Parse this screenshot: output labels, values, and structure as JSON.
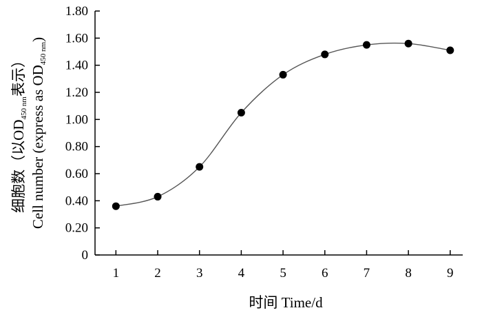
{
  "chart_data": {
    "type": "line",
    "x": [
      1,
      2,
      3,
      4,
      5,
      6,
      7,
      8,
      9
    ],
    "values": [
      0.36,
      0.43,
      0.65,
      1.05,
      1.33,
      1.48,
      1.55,
      1.56,
      1.51
    ],
    "xlabel": "时间  Time/d",
    "ylabel": {
      "line1_prefix": "细胞数（以OD",
      "line1_sub": "450 nm",
      "line1_suffix": "表示）",
      "line2_prefix": "Cell number (express as OD",
      "line2_sub": "450 nm",
      "line2_suffix": ")"
    },
    "xlim": [
      0.5,
      9.3
    ],
    "ylim": [
      0,
      1.8
    ],
    "xticks": [
      "1",
      "2",
      "3",
      "4",
      "5",
      "6",
      "7",
      "8",
      "9"
    ],
    "yticks": [
      "0",
      "0.20",
      "0.40",
      "0.60",
      "0.80",
      "1.00",
      "1.20",
      "1.40",
      "1.60",
      "1.80"
    ],
    "grid": false,
    "legend": "none",
    "colors": {
      "line": "#555555",
      "marker": "#000000",
      "axis": "#000000"
    }
  }
}
